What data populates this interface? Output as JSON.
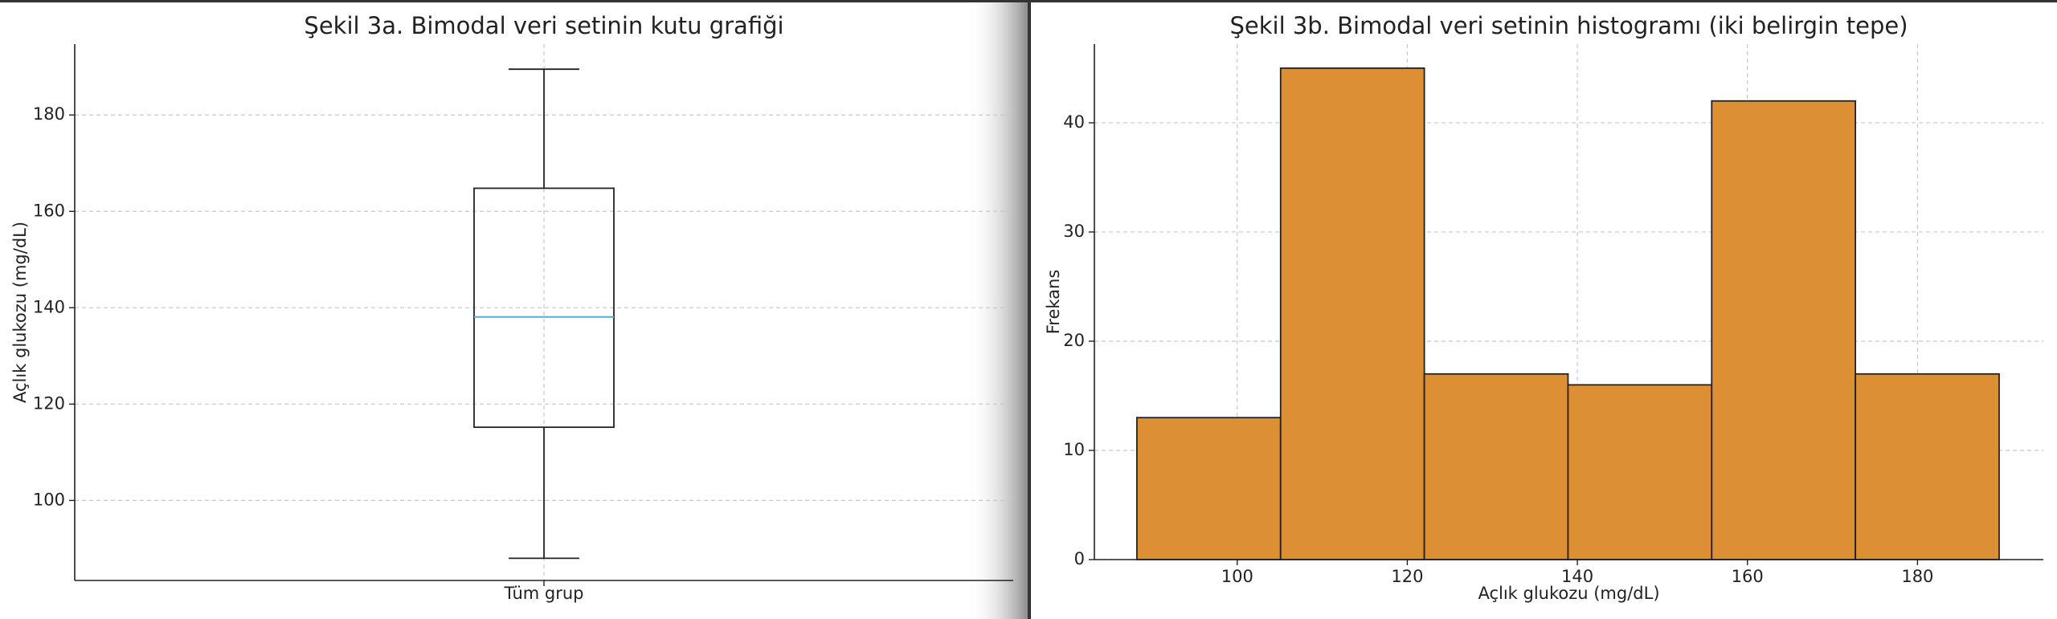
{
  "chart_data": [
    {
      "type": "box",
      "title": "Şekil 3a. Bimodal veri setinin kutu grafiği",
      "y_label": "Açlık glukozu (mg/dL)",
      "categories": [
        "Tüm grup"
      ],
      "whisker_low": [
        88
      ],
      "q1": [
        115.2
      ],
      "median": [
        138.1
      ],
      "q3": [
        164.8
      ],
      "whisker_high": [
        189.5
      ],
      "box_color": "#222222",
      "median_color": "#5fa8d3",
      "ylim": [
        83.4,
        194.7
      ],
      "yticks": [
        100,
        120,
        140,
        160,
        180
      ],
      "grid": true
    },
    {
      "type": "histogram",
      "title": "Şekil 3b. Bimodal veri setinin histogramı (iki belirgin tepe)",
      "x_label": "Açlık glukozu (mg/dL)",
      "y_label": "Frekans",
      "bins": [
        88.2,
        105.1,
        122.0,
        138.9,
        155.8,
        172.7,
        189.6
      ],
      "counts": [
        13,
        45,
        17,
        16,
        42,
        17
      ],
      "color": "#dd9033",
      "edge_color": "#222222",
      "xlim": [
        83.2,
        194.8
      ],
      "xticks": [
        100,
        120,
        140,
        160,
        180
      ],
      "ylim": [
        0,
        47.2
      ],
      "yticks": [
        0,
        10,
        20,
        30,
        40
      ],
      "grid": true
    }
  ]
}
